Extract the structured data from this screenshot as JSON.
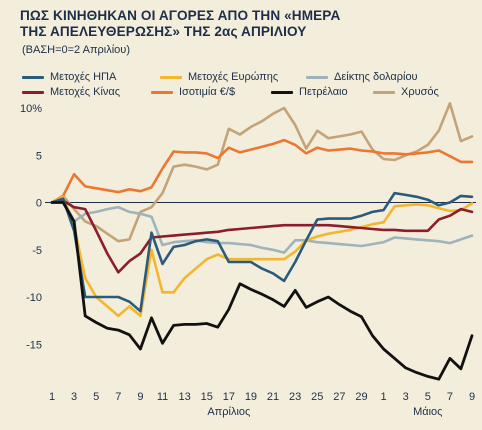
{
  "title_line1": "ΠΩΣ ΚΙΝΗΘΗΚΑΝ ΟΙ ΑΓΟΡΕΣ ΑΠΟ ΤΗΝ «ΗΜΕΡΑ",
  "title_line2": "ΤΗΣ ΑΠΕΛΕΥΘΕΡΩΣΗΣ» ΤΗΣ 2ας ΑΠΡΙΛΙΟΥ",
  "subtitle": "(ΒΑΣΗ=0=2 Απριλίου)",
  "chart_data": {
    "type": "line",
    "title": "ΠΩΣ ΚΙΝΗΘΗΚΑΝ ΟΙ ΑΓΟΡΕΣ ΑΠΟ ΤΗΝ «ΗΜΕΡΑ ΤΗΣ ΑΠΕΛΕΥΘΕΡΩΣΗΣ» ΤΗΣ 2ας ΑΠΡΙΛΙΟΥ",
    "subtitle": "(ΒΑΣΗ=0=2 Απριλίου)",
    "xlabel": "",
    "ylabel": "",
    "x_tick_labels": [
      "1",
      "3",
      "5",
      "7",
      "9",
      "11",
      "13",
      "15",
      "17",
      "19",
      "21",
      "23",
      "25",
      "27",
      "29",
      "1",
      "3",
      "5",
      "7",
      "9"
    ],
    "x_group_labels": [
      {
        "label": "Απρίλιος",
        "at_tick_index": 8
      },
      {
        "label": "Μάιος",
        "at_tick_index": 17
      }
    ],
    "x_day_index_range": [
      0,
      38
    ],
    "y_ticks": [
      10,
      5,
      0,
      -5,
      -10,
      -15
    ],
    "y_tick_labels": [
      "10%",
      "5",
      "0",
      "-5",
      "-10",
      "-15"
    ],
    "ylim": [
      -19,
      11
    ],
    "grid": {
      "x": false,
      "y": false,
      "zero_line": true
    },
    "legend": "top",
    "series": [
      {
        "name": "Μετοχές ΗΠΑ",
        "color": "#2a5a7c",
        "x": [
          0,
          1,
          2,
          3,
          4,
          5,
          6,
          7,
          8,
          9,
          10,
          11,
          12,
          13,
          14,
          15,
          16,
          17,
          18,
          19,
          20,
          21,
          22,
          23,
          24,
          25,
          26,
          27,
          28,
          29,
          30,
          31,
          32,
          33,
          34,
          35,
          36,
          37,
          38
        ],
        "y": [
          0,
          0.4,
          -3,
          -10,
          -10,
          -10,
          -10,
          -10.5,
          -11.5,
          -3.2,
          -6.5,
          -4.7,
          -4.5,
          -4.1,
          -3.9,
          -4.1,
          -6.3,
          -6.3,
          -6.3,
          -7,
          -7.5,
          -8.3,
          -6.3,
          -4,
          -1.8,
          -1.7,
          -1.7,
          -1.7,
          -1.4,
          -1,
          -0.8,
          1,
          0.8,
          0.6,
          0.3,
          -0.3,
          0,
          0.7,
          0.6
        ]
      },
      {
        "name": "Μετοχές Ευρώπης",
        "color": "#f3b62f",
        "x": [
          0,
          1,
          2,
          3,
          4,
          5,
          6,
          7,
          8,
          9,
          10,
          11,
          12,
          13,
          14,
          15,
          16,
          17,
          18,
          19,
          20,
          21,
          22,
          23,
          24,
          25,
          26,
          27,
          28,
          29,
          30,
          31,
          32,
          33,
          34,
          35,
          36,
          37,
          38
        ],
        "y": [
          0,
          0.6,
          -2.5,
          -8,
          -10,
          -11,
          -12,
          -11,
          -12,
          -5,
          -9.5,
          -9.5,
          -8,
          -7,
          -6,
          -5.5,
          -6,
          -6,
          -6,
          -6,
          -6,
          -6,
          -5.2,
          -4,
          -3.6,
          -3.3,
          -3.1,
          -2.9,
          -2.6,
          -2.3,
          -2.1,
          -0.4,
          -0.3,
          -0.2,
          -0.3,
          -0.6,
          -0.9,
          -0.8,
          -0.1
        ]
      },
      {
        "name": "Δείκτης δολαρίου",
        "color": "#9fb3bd",
        "x": [
          0,
          1,
          2,
          3,
          4,
          5,
          6,
          7,
          8,
          9,
          10,
          11,
          12,
          13,
          14,
          15,
          16,
          17,
          18,
          19,
          20,
          21,
          22,
          23,
          24,
          25,
          26,
          27,
          28,
          29,
          30,
          31,
          32,
          33,
          34,
          35,
          36,
          37,
          38
        ],
        "y": [
          0,
          0.3,
          -2,
          -1.2,
          -1,
          -0.7,
          -0.5,
          -1,
          -1.2,
          -1.5,
          -4.5,
          -4.2,
          -4.1,
          -4,
          -4.2,
          -4.3,
          -4.3,
          -4.4,
          -4.5,
          -4.8,
          -5,
          -5.3,
          -4,
          -4,
          -4.2,
          -4.3,
          -4.4,
          -4.5,
          -4.6,
          -4.4,
          -4.2,
          -3.7,
          -3.8,
          -3.9,
          -4,
          -4.1,
          -4.3,
          -3.9,
          -3.5
        ]
      },
      {
        "name": "Μετοχές Κίνας",
        "color": "#8b1d2c",
        "x": [
          0,
          1,
          2,
          3,
          4,
          5,
          6,
          7,
          8,
          9,
          10,
          11,
          12,
          13,
          14,
          15,
          16,
          17,
          18,
          19,
          20,
          21,
          22,
          23,
          24,
          25,
          26,
          27,
          28,
          29,
          30,
          31,
          32,
          33,
          34,
          35,
          36,
          37,
          38
        ],
        "y": [
          0,
          0.2,
          -0.5,
          -0.7,
          -3,
          -5.4,
          -7.4,
          -6.2,
          -5.4,
          -3.7,
          -3.6,
          -3.5,
          -3.4,
          -3.3,
          -3.2,
          -3.1,
          -2.9,
          -2.8,
          -2.7,
          -2.6,
          -2.5,
          -2.4,
          -2.4,
          -2.4,
          -2.4,
          -2.4,
          -2.5,
          -2.6,
          -2.7,
          -2.8,
          -2.9,
          -2.9,
          -3,
          -3,
          -3,
          -1.8,
          -1.4,
          -0.7,
          -1
        ]
      },
      {
        "name": "Ισοτιμία €/$",
        "color": "#ec7732",
        "x": [
          0,
          1,
          2,
          3,
          4,
          5,
          6,
          7,
          8,
          9,
          10,
          11,
          12,
          13,
          14,
          15,
          16,
          17,
          18,
          19,
          20,
          21,
          22,
          23,
          24,
          25,
          26,
          27,
          28,
          29,
          30,
          31,
          32,
          33,
          34,
          35,
          36,
          37,
          38
        ],
        "y": [
          0,
          0.7,
          3,
          1.7,
          1.5,
          1.3,
          1.1,
          1.4,
          1.2,
          1.6,
          3.6,
          5.4,
          5.3,
          5.3,
          5.2,
          4.7,
          5.8,
          5.3,
          5.6,
          5.9,
          6.2,
          6.6,
          6.1,
          5.2,
          5.8,
          5.5,
          5.6,
          5.7,
          5.5,
          5.4,
          5.2,
          5.2,
          5.1,
          5.2,
          5.3,
          5.5,
          4.9,
          4.3,
          4.3
        ]
      },
      {
        "name": "Πετρέλαιο",
        "color": "#111111",
        "x": [
          0,
          1,
          2,
          3,
          4,
          5,
          6,
          7,
          8,
          9,
          10,
          11,
          12,
          13,
          14,
          15,
          16,
          17,
          18,
          19,
          20,
          21,
          22,
          23,
          24,
          25,
          26,
          27,
          28,
          29,
          30,
          31,
          32,
          33,
          34,
          35,
          36,
          37,
          38
        ],
        "y": [
          0,
          0,
          -2,
          -12,
          -12.7,
          -13.3,
          -13.5,
          -14,
          -15.5,
          -12.2,
          -14.9,
          -13,
          -12.9,
          -12.9,
          -12.8,
          -13.2,
          -11.3,
          -8.6,
          -9.2,
          -9.7,
          -10.3,
          -11,
          -9.3,
          -11.1,
          -10.5,
          -10,
          -10.8,
          -11.5,
          -12.1,
          -14.1,
          -15.5,
          -16.5,
          -17.5,
          -18,
          -18.4,
          -18.7,
          -16.5,
          -17.6,
          -14.1
        ]
      },
      {
        "name": "Χρυσός",
        "color": "#c4a378",
        "x": [
          0,
          1,
          2,
          3,
          4,
          5,
          6,
          7,
          8,
          9,
          10,
          11,
          12,
          13,
          14,
          15,
          16,
          17,
          18,
          19,
          20,
          21,
          22,
          23,
          24,
          25,
          26,
          27,
          28,
          29,
          30,
          31,
          32,
          33,
          34,
          35,
          36,
          37,
          38
        ],
        "y": [
          0,
          0.7,
          -0.7,
          -2,
          -2.5,
          -3.3,
          -4.1,
          -3.9,
          -1,
          -0.5,
          1,
          3.8,
          4,
          3.8,
          3.5,
          4,
          7.8,
          7.2,
          8,
          8.6,
          9.4,
          10,
          8.2,
          5.7,
          7.6,
          6.8,
          7,
          7.2,
          7.5,
          5.6,
          4.6,
          4.5,
          5,
          5.4,
          6.1,
          7.6,
          10.5,
          6.5,
          7
        ]
      }
    ]
  }
}
